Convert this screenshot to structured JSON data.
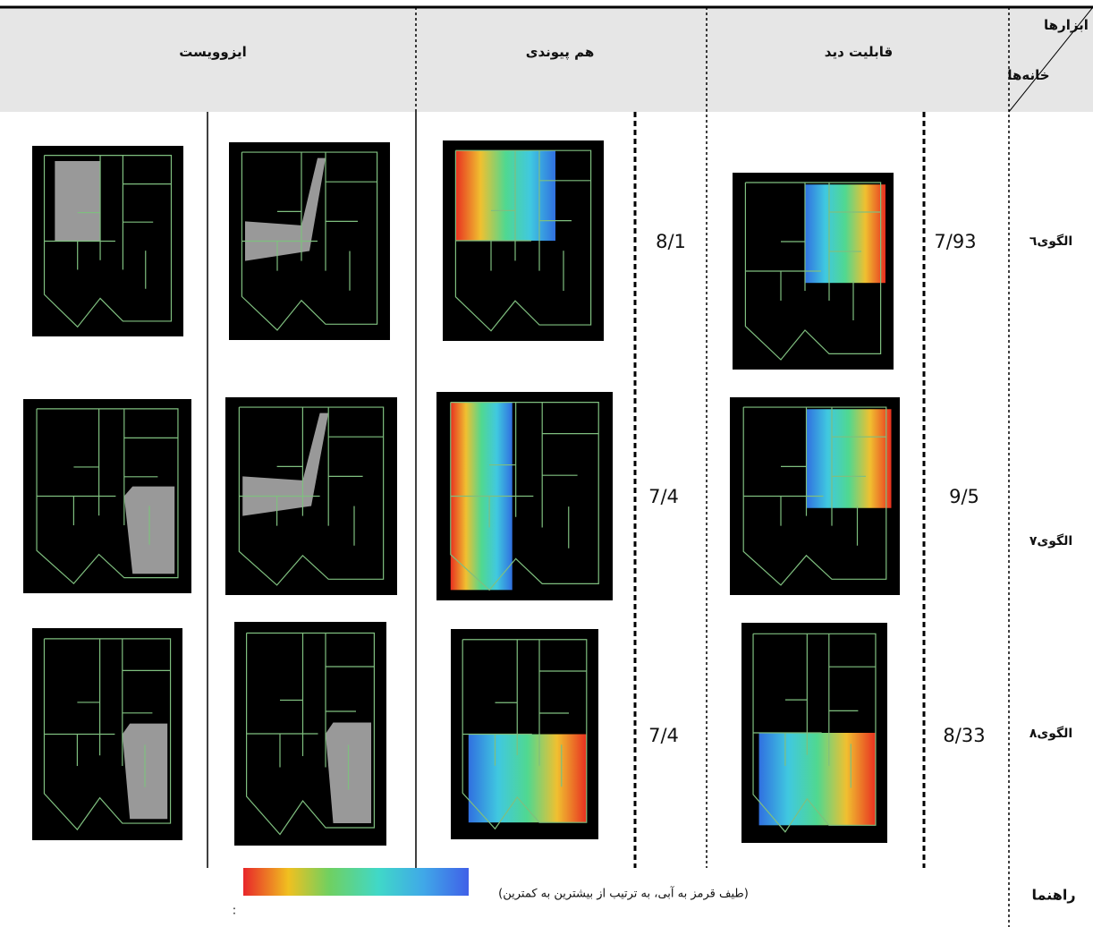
{
  "header": {
    "tools": "ابزارها",
    "houses": "خانه‌ها",
    "columns": [
      "قابلیت دید",
      "هم پیوندی",
      "ایزوویست"
    ]
  },
  "rows": [
    {
      "label": "الگوی٦",
      "visibility": "7/93",
      "integration": "8/1"
    },
    {
      "label": "الگوی۷",
      "visibility": "9/5",
      "integration": "7/4"
    },
    {
      "label": "الگوی۸",
      "visibility": "8/33",
      "integration": "7/4"
    }
  ],
  "legend": {
    "label": "راهنما",
    "text": "(طیف قرمز به آبی، به ترتیب از بیشترین به کمترین)",
    "colon": ":"
  }
}
